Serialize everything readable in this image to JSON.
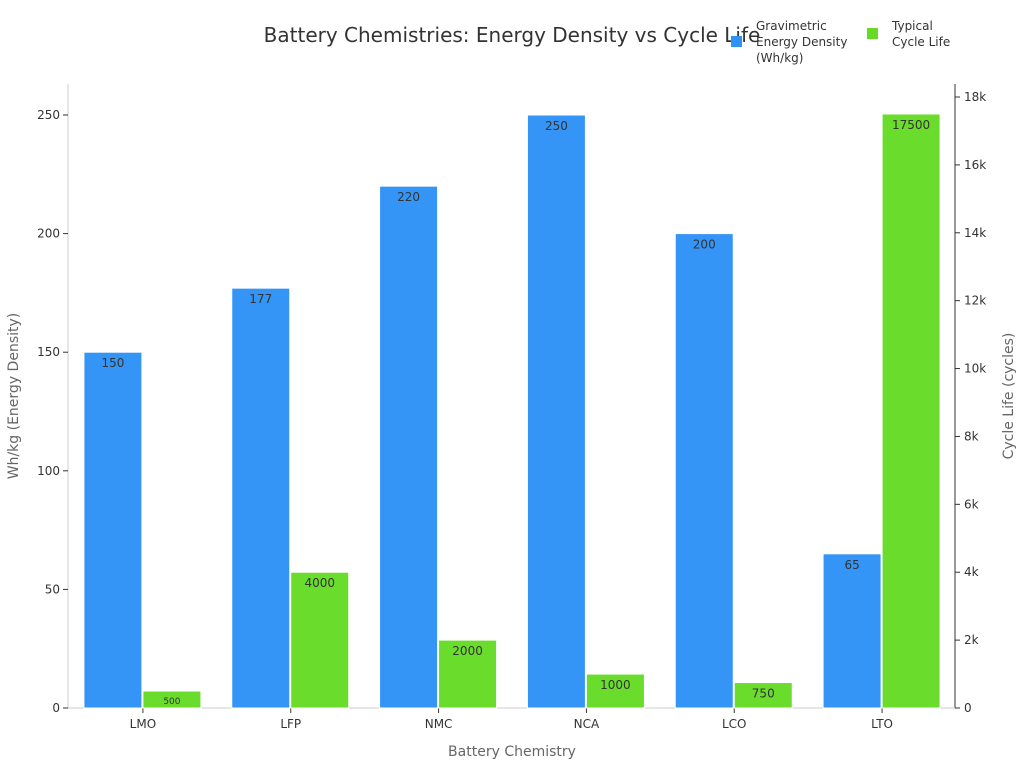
{
  "chart_data": {
    "type": "bar",
    "title": "Battery Chemistries: Energy Density vs Cycle Life",
    "xlabel": "Battery Chemistry",
    "ylabel": "Wh/kg (Energy Density)",
    "y2label": "Cycle Life (cycles)",
    "categories": [
      "LMO",
      "LFP",
      "NMC",
      "NCA",
      "LCO",
      "LTO"
    ],
    "series": [
      {
        "name": "Gravimetric Energy Density (Wh/kg)",
        "legend_lines": [
          "Gravimetric",
          "Energy Density",
          "(Wh/kg)"
        ],
        "axis": "left",
        "color": "#2f92f7",
        "values": [
          150,
          177,
          220,
          250,
          200,
          65
        ]
      },
      {
        "name": "Typical Cycle Life",
        "legend_lines": [
          "Typical",
          "Cycle Life"
        ],
        "axis": "right",
        "color": "#66db26",
        "values": [
          500,
          4000,
          2000,
          1000,
          750,
          17500
        ]
      }
    ],
    "ylim": [
      0,
      263
    ],
    "y2lim": [
      0,
      18400
    ],
    "yticks": [
      0,
      50,
      100,
      150,
      200,
      250
    ],
    "y2ticks": [
      0,
      2000,
      4000,
      6000,
      8000,
      10000,
      12000,
      14000,
      16000,
      18000
    ],
    "y2ticklabels": [
      "0",
      "2k",
      "4k",
      "6k",
      "8k",
      "10k",
      "12k",
      "14k",
      "16k",
      "18k"
    ],
    "grid": false,
    "legend": "top-right"
  }
}
